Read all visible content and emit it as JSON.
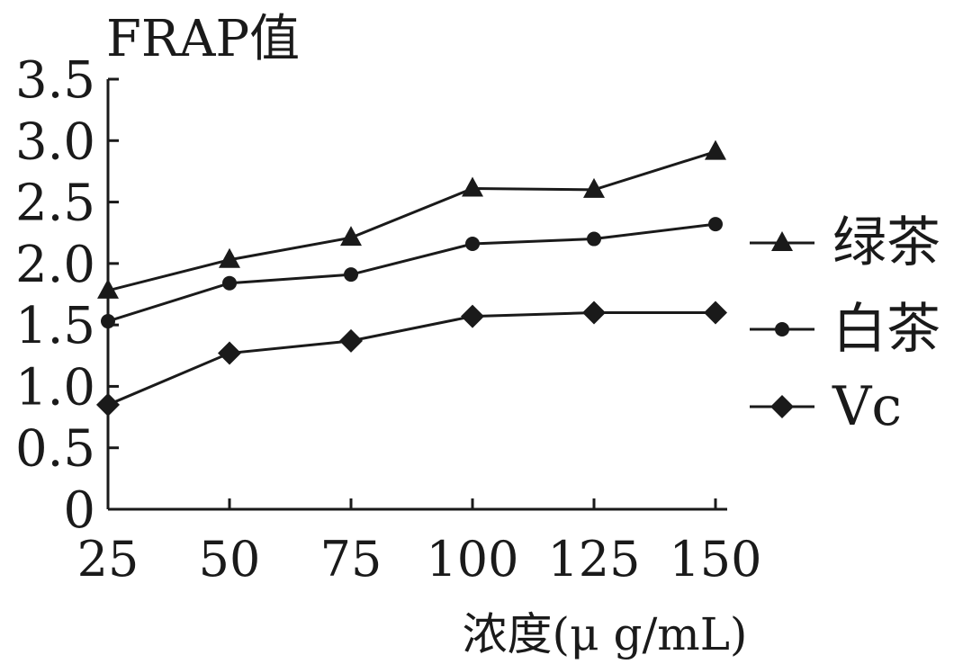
{
  "chart_data": {
    "type": "line",
    "ylabel": "FRAP值",
    "xlabel": "浓度(μ g/mL)",
    "categories": [
      "25",
      "50",
      "75",
      "100",
      "125",
      "150"
    ],
    "ylim": [
      0,
      3.5
    ],
    "yticks": [
      "0",
      "0.5",
      "1.0",
      "1.5",
      "2.0",
      "2.5",
      "3.0",
      "3.5"
    ],
    "legend_position": "right",
    "series": [
      {
        "name": "绿茶",
        "marker": "triangle",
        "values": [
          1.78,
          2.03,
          2.21,
          2.61,
          2.6,
          2.91
        ]
      },
      {
        "name": "白茶",
        "marker": "circle",
        "values": [
          1.53,
          1.84,
          1.91,
          2.16,
          2.2,
          2.32
        ]
      },
      {
        "name": "Vc",
        "marker": "diamond",
        "values": [
          0.85,
          1.27,
          1.37,
          1.57,
          1.6,
          1.6
        ]
      }
    ]
  }
}
